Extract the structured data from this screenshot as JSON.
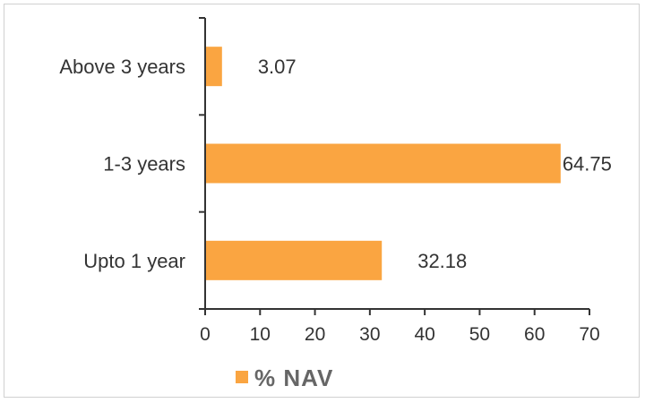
{
  "chart_data": {
    "type": "bar",
    "orientation": "horizontal",
    "categories": [
      "Above 3 years",
      "1-3 years",
      "Upto 1 year"
    ],
    "series": [
      {
        "name": "% NAV",
        "values": [
          3.07,
          64.75,
          32.18
        ],
        "data_labels": [
          "3.07",
          "64.75",
          "32.18"
        ]
      }
    ],
    "xlim": [
      0,
      70
    ],
    "x_ticks": [
      "0",
      "10",
      "20",
      "30",
      "40",
      "50",
      "60",
      "70"
    ],
    "x_tick_values": [
      0,
      10,
      20,
      30,
      40,
      50,
      60,
      70
    ],
    "grid": false,
    "legend_position": "bottom-left",
    "colors": {
      "bar": "#FAA541",
      "axis": "#333333"
    }
  }
}
